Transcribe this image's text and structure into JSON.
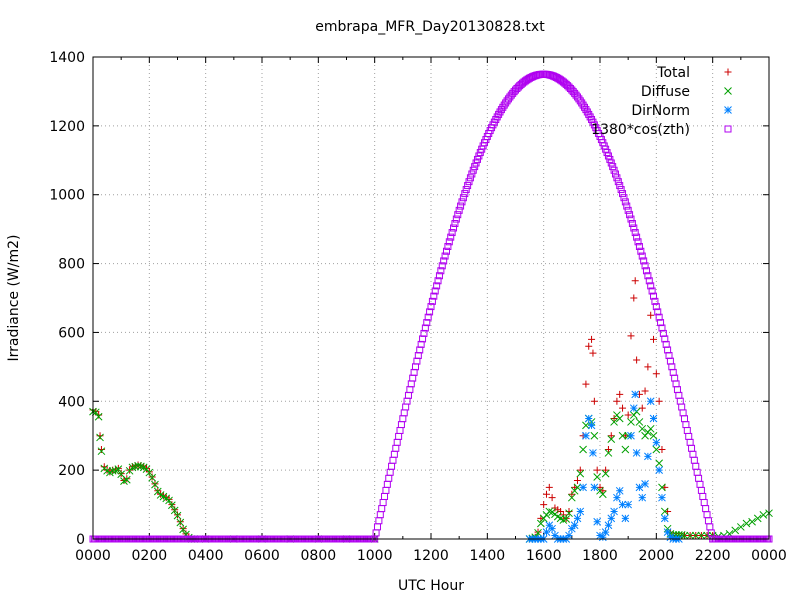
{
  "chart_data": {
    "type": "scatter",
    "title": "embrapa_MFR_Day20130828.txt",
    "xlabel": "UTC Hour",
    "ylabel": "Irradiance (W/m2)",
    "xlim": [
      0,
      24
    ],
    "ylim": [
      0,
      1400
    ],
    "x_tick_labels": [
      "0000",
      "0200",
      "0400",
      "0600",
      "0800",
      "1000",
      "1200",
      "1400",
      "1600",
      "1800",
      "2000",
      "2200",
      "0000"
    ],
    "y_tick_labels": [
      "0",
      "200",
      "400",
      "600",
      "800",
      "1000",
      "1200",
      "1400"
    ],
    "y_ticks": [
      0,
      200,
      400,
      600,
      800,
      1000,
      1200,
      1400
    ],
    "grid": true,
    "legend_position": "top-right",
    "series": [
      {
        "name": "Total",
        "marker": "plus",
        "color": "#cc0000",
        "points": [
          [
            0.0,
            375
          ],
          [
            0.1,
            370
          ],
          [
            0.2,
            360
          ],
          [
            0.25,
            300
          ],
          [
            0.3,
            260
          ],
          [
            0.4,
            210
          ],
          [
            0.5,
            200
          ],
          [
            0.6,
            195
          ],
          [
            0.7,
            200
          ],
          [
            0.8,
            200
          ],
          [
            0.9,
            205
          ],
          [
            1.0,
            190
          ],
          [
            1.1,
            170
          ],
          [
            1.2,
            175
          ],
          [
            1.3,
            200
          ],
          [
            1.4,
            210
          ],
          [
            1.5,
            212
          ],
          [
            1.6,
            215
          ],
          [
            1.7,
            213
          ],
          [
            1.8,
            210
          ],
          [
            1.9,
            205
          ],
          [
            2.0,
            195
          ],
          [
            2.1,
            180
          ],
          [
            2.2,
            160
          ],
          [
            2.3,
            140
          ],
          [
            2.4,
            130
          ],
          [
            2.5,
            125
          ],
          [
            2.6,
            120
          ],
          [
            2.7,
            115
          ],
          [
            2.8,
            100
          ],
          [
            2.9,
            85
          ],
          [
            3.0,
            70
          ],
          [
            3.1,
            50
          ],
          [
            3.2,
            30
          ],
          [
            3.3,
            15
          ],
          [
            3.4,
            5
          ],
          [
            3.5,
            0
          ],
          [
            3.6,
            0
          ],
          [
            4,
            0
          ],
          [
            5,
            0
          ],
          [
            6,
            0
          ],
          [
            7,
            0
          ],
          [
            8,
            0
          ],
          [
            9,
            0
          ],
          [
            10,
            0
          ],
          [
            15.5,
            0
          ],
          [
            15.6,
            2
          ],
          [
            15.7,
            5
          ],
          [
            15.8,
            20
          ],
          [
            15.9,
            60
          ],
          [
            16.0,
            100
          ],
          [
            16.1,
            130
          ],
          [
            16.2,
            150
          ],
          [
            16.3,
            120
          ],
          [
            16.4,
            90
          ],
          [
            16.5,
            85
          ],
          [
            16.6,
            80
          ],
          [
            16.7,
            70
          ],
          [
            16.8,
            60
          ],
          [
            16.9,
            80
          ],
          [
            17.0,
            130
          ],
          [
            17.1,
            150
          ],
          [
            17.2,
            170
          ],
          [
            17.3,
            200
          ],
          [
            17.4,
            300
          ],
          [
            17.5,
            450
          ],
          [
            17.6,
            560
          ],
          [
            17.7,
            580
          ],
          [
            17.75,
            540
          ],
          [
            17.8,
            400
          ],
          [
            17.9,
            200
          ],
          [
            18.0,
            150
          ],
          [
            18.1,
            140
          ],
          [
            18.2,
            200
          ],
          [
            18.3,
            260
          ],
          [
            18.4,
            300
          ],
          [
            18.5,
            350
          ],
          [
            18.6,
            400
          ],
          [
            18.7,
            420
          ],
          [
            18.8,
            380
          ],
          [
            18.9,
            300
          ],
          [
            19.0,
            360
          ],
          [
            19.1,
            590
          ],
          [
            19.2,
            700
          ],
          [
            19.25,
            750
          ],
          [
            19.3,
            520
          ],
          [
            19.4,
            420
          ],
          [
            19.5,
            380
          ],
          [
            19.6,
            430
          ],
          [
            19.7,
            500
          ],
          [
            19.8,
            650
          ],
          [
            19.9,
            580
          ],
          [
            20.0,
            480
          ],
          [
            20.1,
            400
          ],
          [
            20.2,
            260
          ],
          [
            20.3,
            150
          ],
          [
            20.4,
            80
          ],
          [
            20.5,
            20
          ],
          [
            20.6,
            10
          ],
          [
            20.7,
            10
          ],
          [
            20.8,
            10
          ],
          [
            20.9,
            10
          ],
          [
            21.0,
            10
          ],
          [
            21.2,
            10
          ],
          [
            21.4,
            10
          ],
          [
            21.6,
            10
          ],
          [
            21.8,
            10
          ],
          [
            22.0,
            10
          ]
        ]
      },
      {
        "name": "Diffuse",
        "marker": "cross",
        "color": "#00a000",
        "points": [
          [
            0.0,
            370
          ],
          [
            0.1,
            368
          ],
          [
            0.2,
            355
          ],
          [
            0.25,
            295
          ],
          [
            0.3,
            255
          ],
          [
            0.4,
            205
          ],
          [
            0.5,
            198
          ],
          [
            0.6,
            193
          ],
          [
            0.7,
            198
          ],
          [
            0.8,
            198
          ],
          [
            0.9,
            203
          ],
          [
            1.0,
            188
          ],
          [
            1.1,
            168
          ],
          [
            1.2,
            172
          ],
          [
            1.3,
            198
          ],
          [
            1.4,
            208
          ],
          [
            1.5,
            210
          ],
          [
            1.6,
            213
          ],
          [
            1.7,
            211
          ],
          [
            1.8,
            208
          ],
          [
            1.9,
            203
          ],
          [
            2.0,
            193
          ],
          [
            2.1,
            178
          ],
          [
            2.2,
            158
          ],
          [
            2.3,
            138
          ],
          [
            2.4,
            128
          ],
          [
            2.5,
            123
          ],
          [
            2.6,
            118
          ],
          [
            2.7,
            112
          ],
          [
            2.8,
            98
          ],
          [
            2.9,
            83
          ],
          [
            3.0,
            68
          ],
          [
            3.1,
            48
          ],
          [
            3.2,
            28
          ],
          [
            3.3,
            13
          ],
          [
            3.4,
            4
          ],
          [
            3.5,
            0
          ],
          [
            3.6,
            0
          ],
          [
            4,
            0
          ],
          [
            5,
            0
          ],
          [
            6,
            0
          ],
          [
            7,
            0
          ],
          [
            8,
            0
          ],
          [
            9,
            0
          ],
          [
            10,
            0
          ],
          [
            15.5,
            0
          ],
          [
            15.6,
            2
          ],
          [
            15.7,
            5
          ],
          [
            15.8,
            18
          ],
          [
            15.9,
            45
          ],
          [
            16.0,
            60
          ],
          [
            16.1,
            70
          ],
          [
            16.2,
            80
          ],
          [
            16.3,
            78
          ],
          [
            16.4,
            72
          ],
          [
            16.5,
            65
          ],
          [
            16.6,
            60
          ],
          [
            16.7,
            55
          ],
          [
            16.8,
            58
          ],
          [
            16.9,
            75
          ],
          [
            17.0,
            120
          ],
          [
            17.1,
            140
          ],
          [
            17.2,
            150
          ],
          [
            17.3,
            190
          ],
          [
            17.4,
            260
          ],
          [
            17.5,
            330
          ],
          [
            17.6,
            350
          ],
          [
            17.7,
            340
          ],
          [
            17.8,
            300
          ],
          [
            17.9,
            180
          ],
          [
            18.0,
            140
          ],
          [
            18.1,
            130
          ],
          [
            18.2,
            190
          ],
          [
            18.3,
            250
          ],
          [
            18.4,
            290
          ],
          [
            18.5,
            340
          ],
          [
            18.6,
            360
          ],
          [
            18.7,
            350
          ],
          [
            18.8,
            300
          ],
          [
            18.9,
            260
          ],
          [
            19.0,
            300
          ],
          [
            19.1,
            340
          ],
          [
            19.2,
            360
          ],
          [
            19.3,
            370
          ],
          [
            19.4,
            340
          ],
          [
            19.5,
            320
          ],
          [
            19.6,
            300
          ],
          [
            19.7,
            310
          ],
          [
            19.8,
            320
          ],
          [
            19.9,
            300
          ],
          [
            20.0,
            260
          ],
          [
            20.1,
            220
          ],
          [
            20.2,
            150
          ],
          [
            20.3,
            80
          ],
          [
            20.4,
            30
          ],
          [
            20.5,
            15
          ],
          [
            20.6,
            12
          ],
          [
            20.7,
            12
          ],
          [
            20.8,
            12
          ],
          [
            20.9,
            12
          ],
          [
            21.0,
            10
          ],
          [
            21.2,
            10
          ],
          [
            21.4,
            10
          ],
          [
            21.6,
            10
          ],
          [
            21.8,
            10
          ],
          [
            22.0,
            10
          ],
          [
            22.2,
            8
          ],
          [
            22.4,
            10
          ],
          [
            22.6,
            15
          ],
          [
            22.8,
            25
          ],
          [
            23.0,
            35
          ],
          [
            23.2,
            45
          ],
          [
            23.4,
            50
          ],
          [
            23.6,
            60
          ],
          [
            23.8,
            70
          ],
          [
            24.0,
            75
          ]
        ]
      },
      {
        "name": "DirNorm",
        "marker": "star",
        "color": "#0080ff",
        "points": [
          [
            15.5,
            0
          ],
          [
            15.6,
            0
          ],
          [
            15.7,
            0
          ],
          [
            15.8,
            0
          ],
          [
            15.9,
            0
          ],
          [
            16.0,
            0
          ],
          [
            16.1,
            20
          ],
          [
            16.2,
            40
          ],
          [
            16.3,
            30
          ],
          [
            16.4,
            10
          ],
          [
            16.5,
            0
          ],
          [
            16.6,
            0
          ],
          [
            16.7,
            0
          ],
          [
            16.8,
            0
          ],
          [
            16.9,
            10
          ],
          [
            17.0,
            30
          ],
          [
            17.1,
            40
          ],
          [
            17.2,
            60
          ],
          [
            17.3,
            80
          ],
          [
            17.4,
            150
          ],
          [
            17.5,
            300
          ],
          [
            17.6,
            350
          ],
          [
            17.7,
            330
          ],
          [
            17.75,
            250
          ],
          [
            17.8,
            150
          ],
          [
            17.9,
            50
          ],
          [
            18.0,
            10
          ],
          [
            18.1,
            5
          ],
          [
            18.2,
            20
          ],
          [
            18.3,
            40
          ],
          [
            18.4,
            60
          ],
          [
            18.5,
            80
          ],
          [
            18.6,
            120
          ],
          [
            18.7,
            140
          ],
          [
            18.8,
            100
          ],
          [
            18.9,
            60
          ],
          [
            19.0,
            100
          ],
          [
            19.1,
            300
          ],
          [
            19.2,
            380
          ],
          [
            19.25,
            420
          ],
          [
            19.3,
            250
          ],
          [
            19.4,
            150
          ],
          [
            19.5,
            120
          ],
          [
            19.6,
            160
          ],
          [
            19.7,
            240
          ],
          [
            19.8,
            400
          ],
          [
            19.9,
            350
          ],
          [
            20.0,
            280
          ],
          [
            20.1,
            200
          ],
          [
            20.2,
            120
          ],
          [
            20.3,
            60
          ],
          [
            20.4,
            20
          ],
          [
            20.5,
            5
          ],
          [
            20.6,
            0
          ],
          [
            20.7,
            0
          ],
          [
            20.8,
            0
          ]
        ]
      },
      {
        "name": "1380*cos(zth)",
        "marker": "box",
        "color": "#b000f0",
        "points_note": "",
        "peak": 1350,
        "rise_hour": 10.0,
        "set_hour": 22.0,
        "peak_hour": 16.0
      }
    ]
  }
}
